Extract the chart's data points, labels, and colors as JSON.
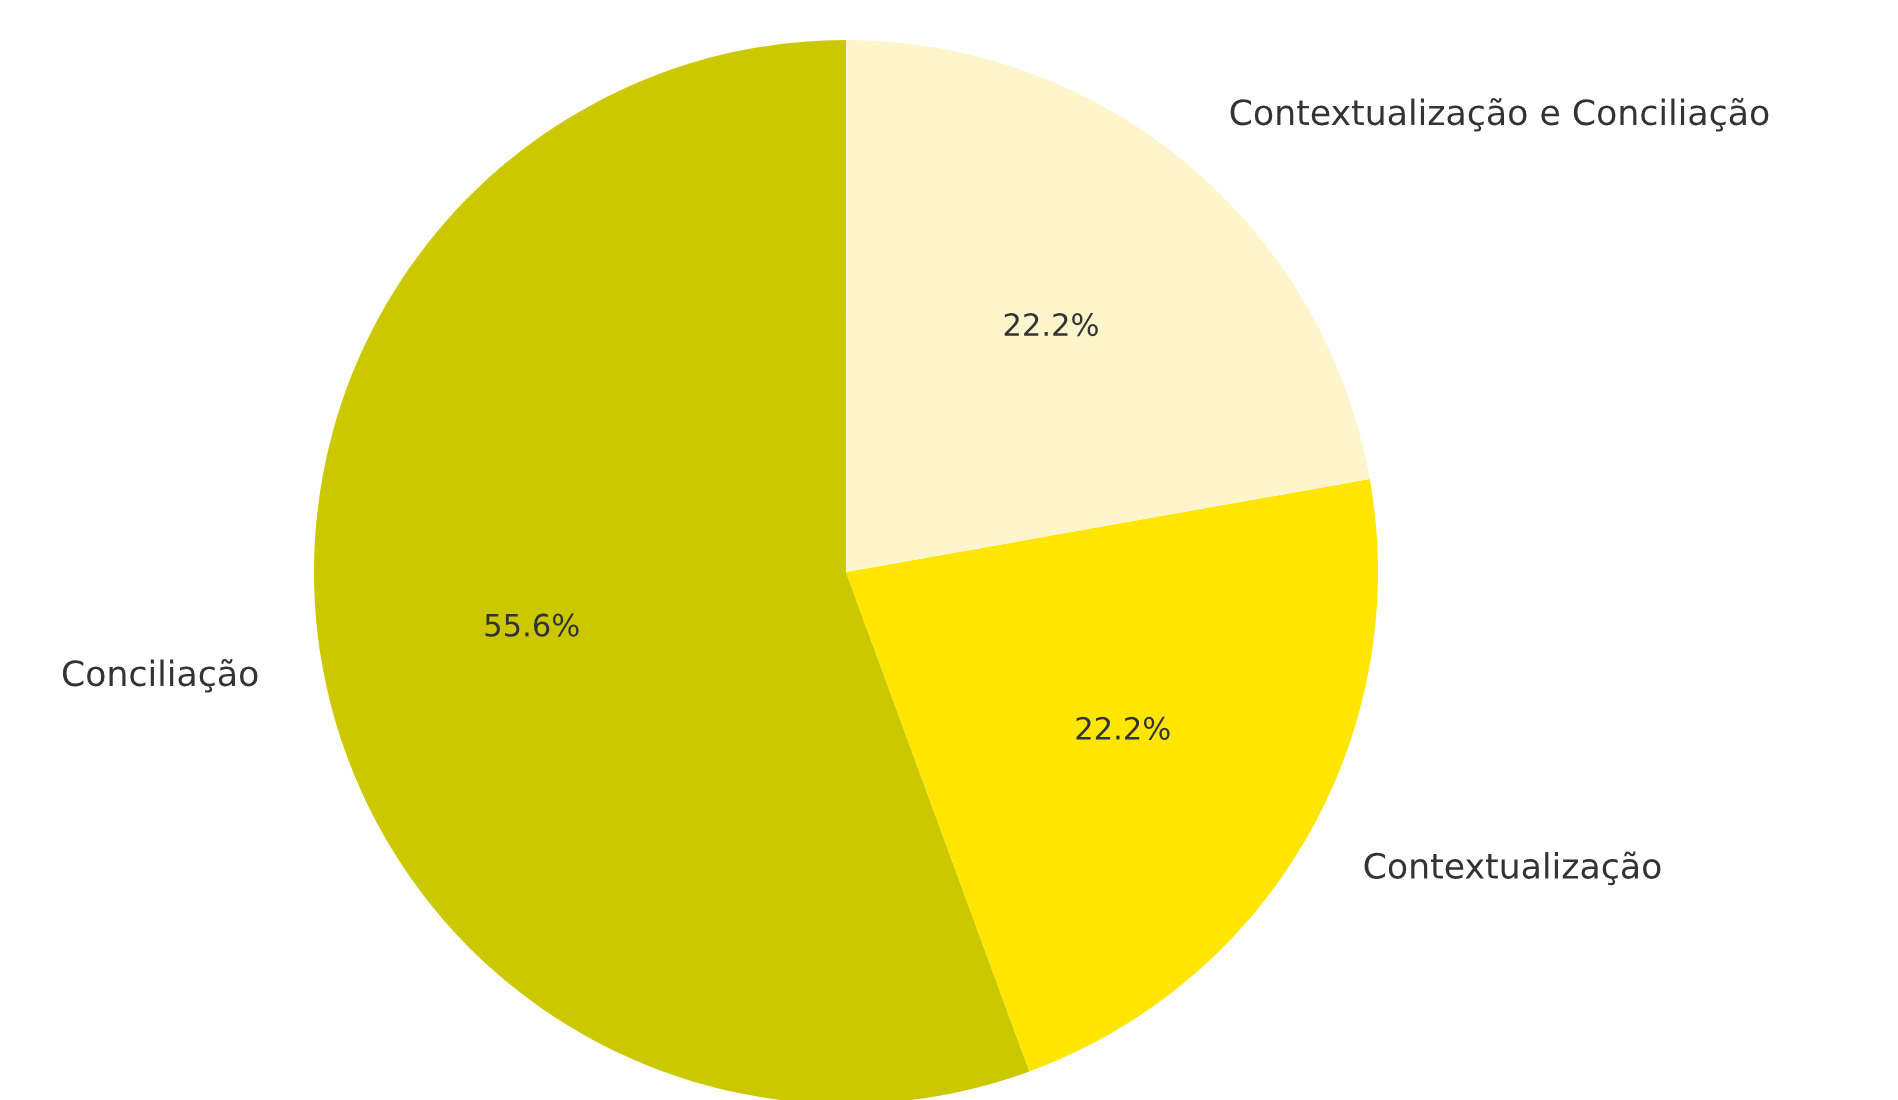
{
  "chart_data": {
    "type": "pie",
    "categories": [
      "Conciliação",
      "Contextualização",
      "Contextualização e Conciliação"
    ],
    "values": [
      55.6,
      22.2,
      22.2
    ],
    "colors": [
      "#ccc800",
      "#ffe600",
      "#fff5cc"
    ],
    "value_labels": [
      "55.6%",
      "22.2%",
      "22.2%"
    ]
  }
}
